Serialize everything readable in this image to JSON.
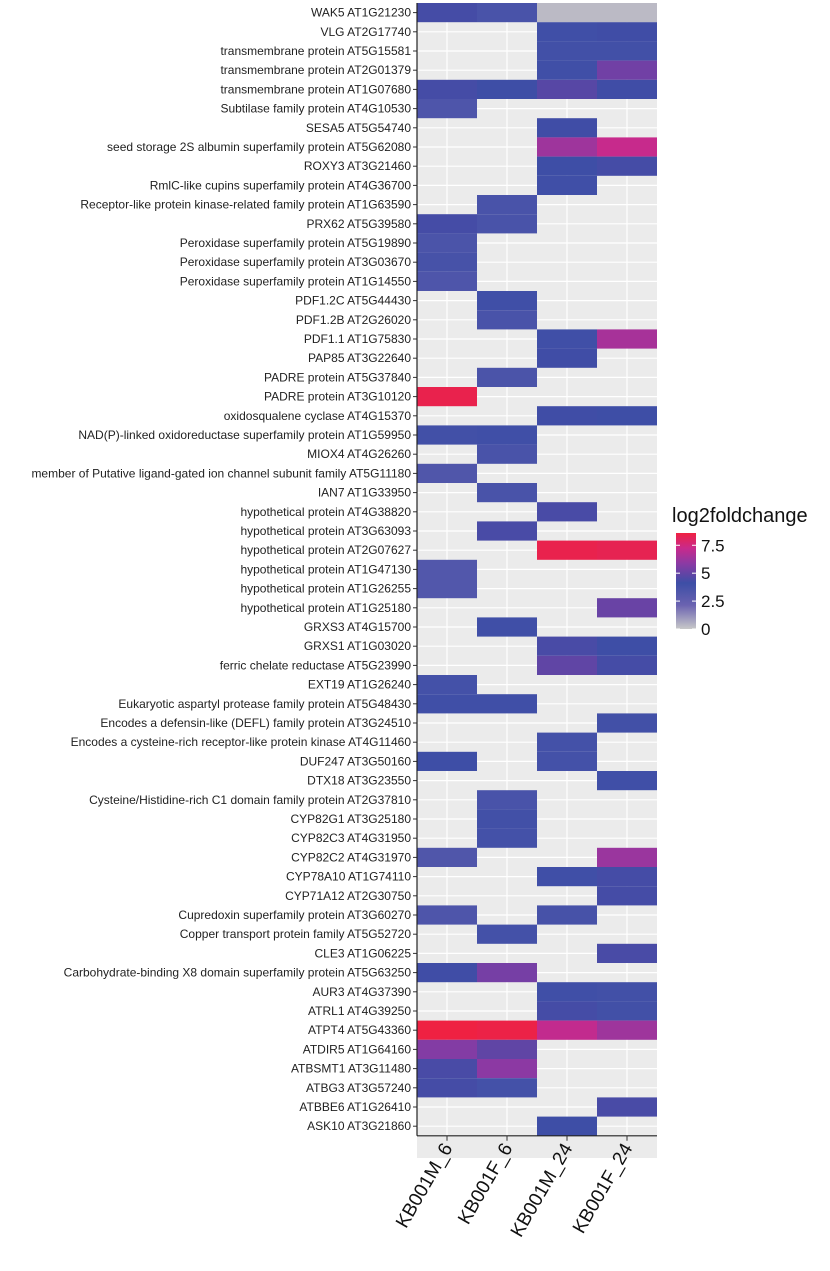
{
  "chart_data": {
    "type": "heatmap",
    "title": "",
    "xlabel": "",
    "ylabel": "",
    "columns": [
      "KB001M_6",
      "KB001F_6",
      "KB001M_24",
      "KB001F_24"
    ],
    "rows": [
      {
        "label": "WAK5 AT1G21230",
        "values": [
          4.3,
          3.6,
          0.3,
          0.3
        ]
      },
      {
        "label": "VLG AT2G17740",
        "values": [
          null,
          null,
          4.0,
          4.2
        ]
      },
      {
        "label": "transmembrane protein AT5G15581",
        "values": [
          null,
          null,
          3.9,
          3.9
        ]
      },
      {
        "label": "transmembrane protein AT2G01379",
        "values": [
          null,
          null,
          4.0,
          5.3
        ]
      },
      {
        "label": "transmembrane protein AT1G07680",
        "values": [
          4.3,
          4.1,
          4.7,
          4.2
        ]
      },
      {
        "label": "Subtilase family protein AT4G10530",
        "values": [
          3.4,
          null,
          null,
          null
        ]
      },
      {
        "label": "SESA5 AT5G54740",
        "values": [
          null,
          null,
          4.2,
          null
        ]
      },
      {
        "label": "seed storage 2S albumin superfamily protein AT5G62080",
        "values": [
          null,
          null,
          6.3,
          7.2
        ]
      },
      {
        "label": "ROXY3 AT3G21460",
        "values": [
          null,
          null,
          4.1,
          4.3
        ]
      },
      {
        "label": "RmlC-like cupins superfamily protein AT4G36700",
        "values": [
          null,
          null,
          4.0,
          null
        ]
      },
      {
        "label": "Receptor-like protein kinase-related family protein AT1G63590",
        "values": [
          null,
          3.6,
          null,
          null
        ]
      },
      {
        "label": "PRX62 AT5G39580",
        "values": [
          4.3,
          3.6,
          null,
          null
        ]
      },
      {
        "label": "Peroxidase superfamily protein AT5G19890",
        "values": [
          3.5,
          null,
          null,
          null
        ]
      },
      {
        "label": "Peroxidase superfamily protein AT3G03670",
        "values": [
          3.7,
          null,
          null,
          null
        ]
      },
      {
        "label": "Peroxidase superfamily protein AT1G14550",
        "values": [
          3.4,
          null,
          null,
          null
        ]
      },
      {
        "label": "PDF1.2C AT5G44430",
        "values": [
          null,
          4.0,
          null,
          null
        ]
      },
      {
        "label": "PDF1.2B AT2G26020",
        "values": [
          null,
          3.6,
          null,
          null
        ]
      },
      {
        "label": "PDF1.1 AT1G75830",
        "values": [
          null,
          null,
          4.0,
          6.5
        ]
      },
      {
        "label": "PAP85 AT3G22640",
        "values": [
          null,
          null,
          4.2,
          null
        ]
      },
      {
        "label": "PADRE protein AT5G37840",
        "values": [
          null,
          3.5,
          null,
          null
        ]
      },
      {
        "label": "PADRE protein AT3G10120",
        "values": [
          8.4,
          null,
          null,
          null
        ]
      },
      {
        "label": "oxidosqualene cyclase AT4G15370",
        "values": [
          null,
          null,
          4.2,
          4.1
        ]
      },
      {
        "label": "NAD(P)-linked oxidoreductase superfamily protein AT1G59950",
        "values": [
          3.9,
          4.0,
          null,
          null
        ]
      },
      {
        "label": "MIOX4 AT4G26260",
        "values": [
          null,
          3.6,
          null,
          null
        ]
      },
      {
        "label": "member of Putative ligand-gated ion channel subunit family AT5G11180",
        "values": [
          3.3,
          null,
          null,
          null
        ]
      },
      {
        "label": "IAN7 AT1G33950",
        "values": [
          null,
          3.6,
          null,
          null
        ]
      },
      {
        "label": "hypothetical protein AT4G38820",
        "values": [
          null,
          null,
          4.4,
          null
        ]
      },
      {
        "label": "hypothetical protein AT3G63093",
        "values": [
          null,
          4.4,
          null,
          null
        ]
      },
      {
        "label": "hypothetical protein AT2G07627",
        "values": [
          null,
          null,
          8.4,
          8.3
        ]
      },
      {
        "label": "hypothetical protein AT1G47130",
        "values": [
          3.2,
          null,
          null,
          null
        ]
      },
      {
        "label": "hypothetical protein AT1G26255",
        "values": [
          3.2,
          null,
          null,
          null
        ]
      },
      {
        "label": "hypothetical protein AT1G25180",
        "values": [
          null,
          null,
          null,
          5.1
        ]
      },
      {
        "label": "GRXS3 AT4G15700",
        "values": [
          null,
          4.0,
          null,
          null
        ]
      },
      {
        "label": "GRXS1 AT1G03020",
        "values": [
          null,
          null,
          4.4,
          4.1
        ]
      },
      {
        "label": "ferric chelate reductase AT5G23990",
        "values": [
          null,
          null,
          4.9,
          4.3
        ]
      },
      {
        "label": "EXT19 AT1G26240",
        "values": [
          3.8,
          null,
          null,
          null
        ]
      },
      {
        "label": "Eukaryotic aspartyl protease family protein AT5G48430",
        "values": [
          4.0,
          4.0,
          null,
          null
        ]
      },
      {
        "label": "Encodes a defensin-like (DEFL) family protein AT3G24510",
        "values": [
          null,
          null,
          null,
          3.9
        ]
      },
      {
        "label": "Encodes a cysteine-rich receptor-like protein kinase AT4G11460",
        "values": [
          null,
          null,
          3.8,
          null
        ]
      },
      {
        "label": "DUF247 AT3G50160",
        "values": [
          4.1,
          null,
          3.8,
          null
        ]
      },
      {
        "label": "DTX18 AT3G23550",
        "values": [
          null,
          null,
          null,
          4.0
        ]
      },
      {
        "label": "Cysteine/Histidine-rich C1 domain family protein AT2G37810",
        "values": [
          null,
          3.6,
          null,
          null
        ]
      },
      {
        "label": "CYP82G1 AT3G25180",
        "values": [
          null,
          3.9,
          null,
          null
        ]
      },
      {
        "label": "CYP82C3 AT4G31950",
        "values": [
          null,
          3.8,
          null,
          null
        ]
      },
      {
        "label": "CYP82C2 AT4G31970",
        "values": [
          3.3,
          null,
          null,
          6.2
        ]
      },
      {
        "label": "CYP78A10 AT1G74110",
        "values": [
          null,
          null,
          4.0,
          4.3
        ]
      },
      {
        "label": "CYP71A12 AT2G30750",
        "values": [
          null,
          null,
          null,
          4.3
        ]
      },
      {
        "label": "Cupredoxin superfamily protein AT3G60270",
        "values": [
          3.4,
          null,
          3.7,
          null
        ]
      },
      {
        "label": "Copper transport protein family AT5G52720",
        "values": [
          null,
          3.8,
          null,
          null
        ]
      },
      {
        "label": "CLE3 AT1G06225",
        "values": [
          null,
          null,
          null,
          4.4
        ]
      },
      {
        "label": "Carbohydrate-binding X8 domain superfamily protein AT5G63250",
        "values": [
          4.2,
          5.4,
          null,
          null
        ]
      },
      {
        "label": "AUR3 AT4G37390",
        "values": [
          null,
          null,
          4.0,
          3.9
        ]
      },
      {
        "label": "ATRL1 AT4G39250",
        "values": [
          null,
          null,
          4.3,
          3.9
        ]
      },
      {
        "label": "ATPT4 AT5G43360",
        "values": [
          8.6,
          8.5,
          7.1,
          6.3
        ]
      },
      {
        "label": "ATDIR5 AT1G64160",
        "values": [
          5.7,
          4.9,
          null,
          null
        ]
      },
      {
        "label": "ATBSMT1 AT3G11480",
        "values": [
          4.4,
          5.9,
          null,
          null
        ]
      },
      {
        "label": "ATBG3 AT3G57240",
        "values": [
          4.3,
          3.8,
          null,
          null
        ]
      },
      {
        "label": "ATBBE6 AT1G26410",
        "values": [
          null,
          null,
          null,
          4.4
        ]
      },
      {
        "label": "ASK10 AT3G21860",
        "values": [
          null,
          null,
          4.1,
          null
        ]
      }
    ],
    "legend": {
      "title": "log2foldchange",
      "ticks": [
        "7.5",
        "5",
        "2.5",
        "0"
      ],
      "range": [
        0,
        8.6
      ],
      "colors": [
        "#c8c8c8",
        "#6a62b0",
        "#3d4ea6",
        "#8a3aa4",
        "#c82a8c",
        "#ef2142"
      ],
      "placement": "right"
    },
    "grid": true,
    "panel_background": "#ebebeb",
    "gridline_color": "#ffffff"
  }
}
